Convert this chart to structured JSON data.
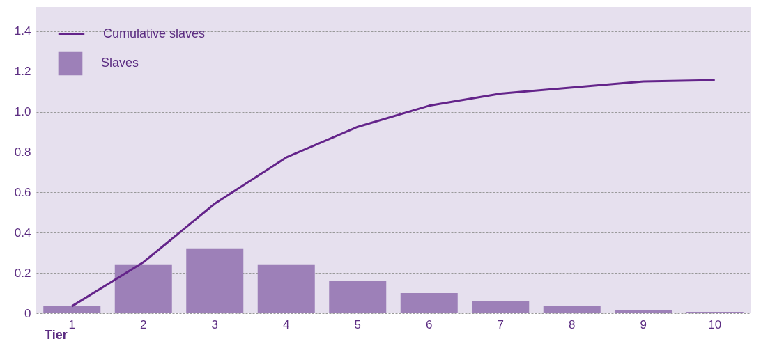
{
  "chart_data": {
    "type": "bar",
    "xlabel": "Tier",
    "categories": [
      "1",
      "2",
      "3",
      "4",
      "5",
      "6",
      "7",
      "8",
      "9",
      "10"
    ],
    "series": [
      {
        "name": "Cumulative slaves",
        "type": "line",
        "color": "#64248a",
        "values": [
          0.035,
          0.253,
          0.544,
          0.773,
          0.925,
          1.03,
          1.09,
          1.12,
          1.15,
          1.157
        ]
      },
      {
        "name": "Slaves",
        "color": "#9d80b8",
        "values": [
          0.035,
          0.243,
          0.322,
          0.243,
          0.16,
          0.1,
          0.062,
          0.035,
          0.014,
          0.007
        ]
      }
    ],
    "ylim": [
      0,
      1.52
    ],
    "yticks": [
      0,
      0.2,
      0.4,
      0.6,
      0.8,
      {
        "value": 1,
        "label": "1.0"
      },
      1.2,
      1.4
    ],
    "grid": "y",
    "legend": "top left",
    "line_style": "solid",
    "marker": "none"
  }
}
